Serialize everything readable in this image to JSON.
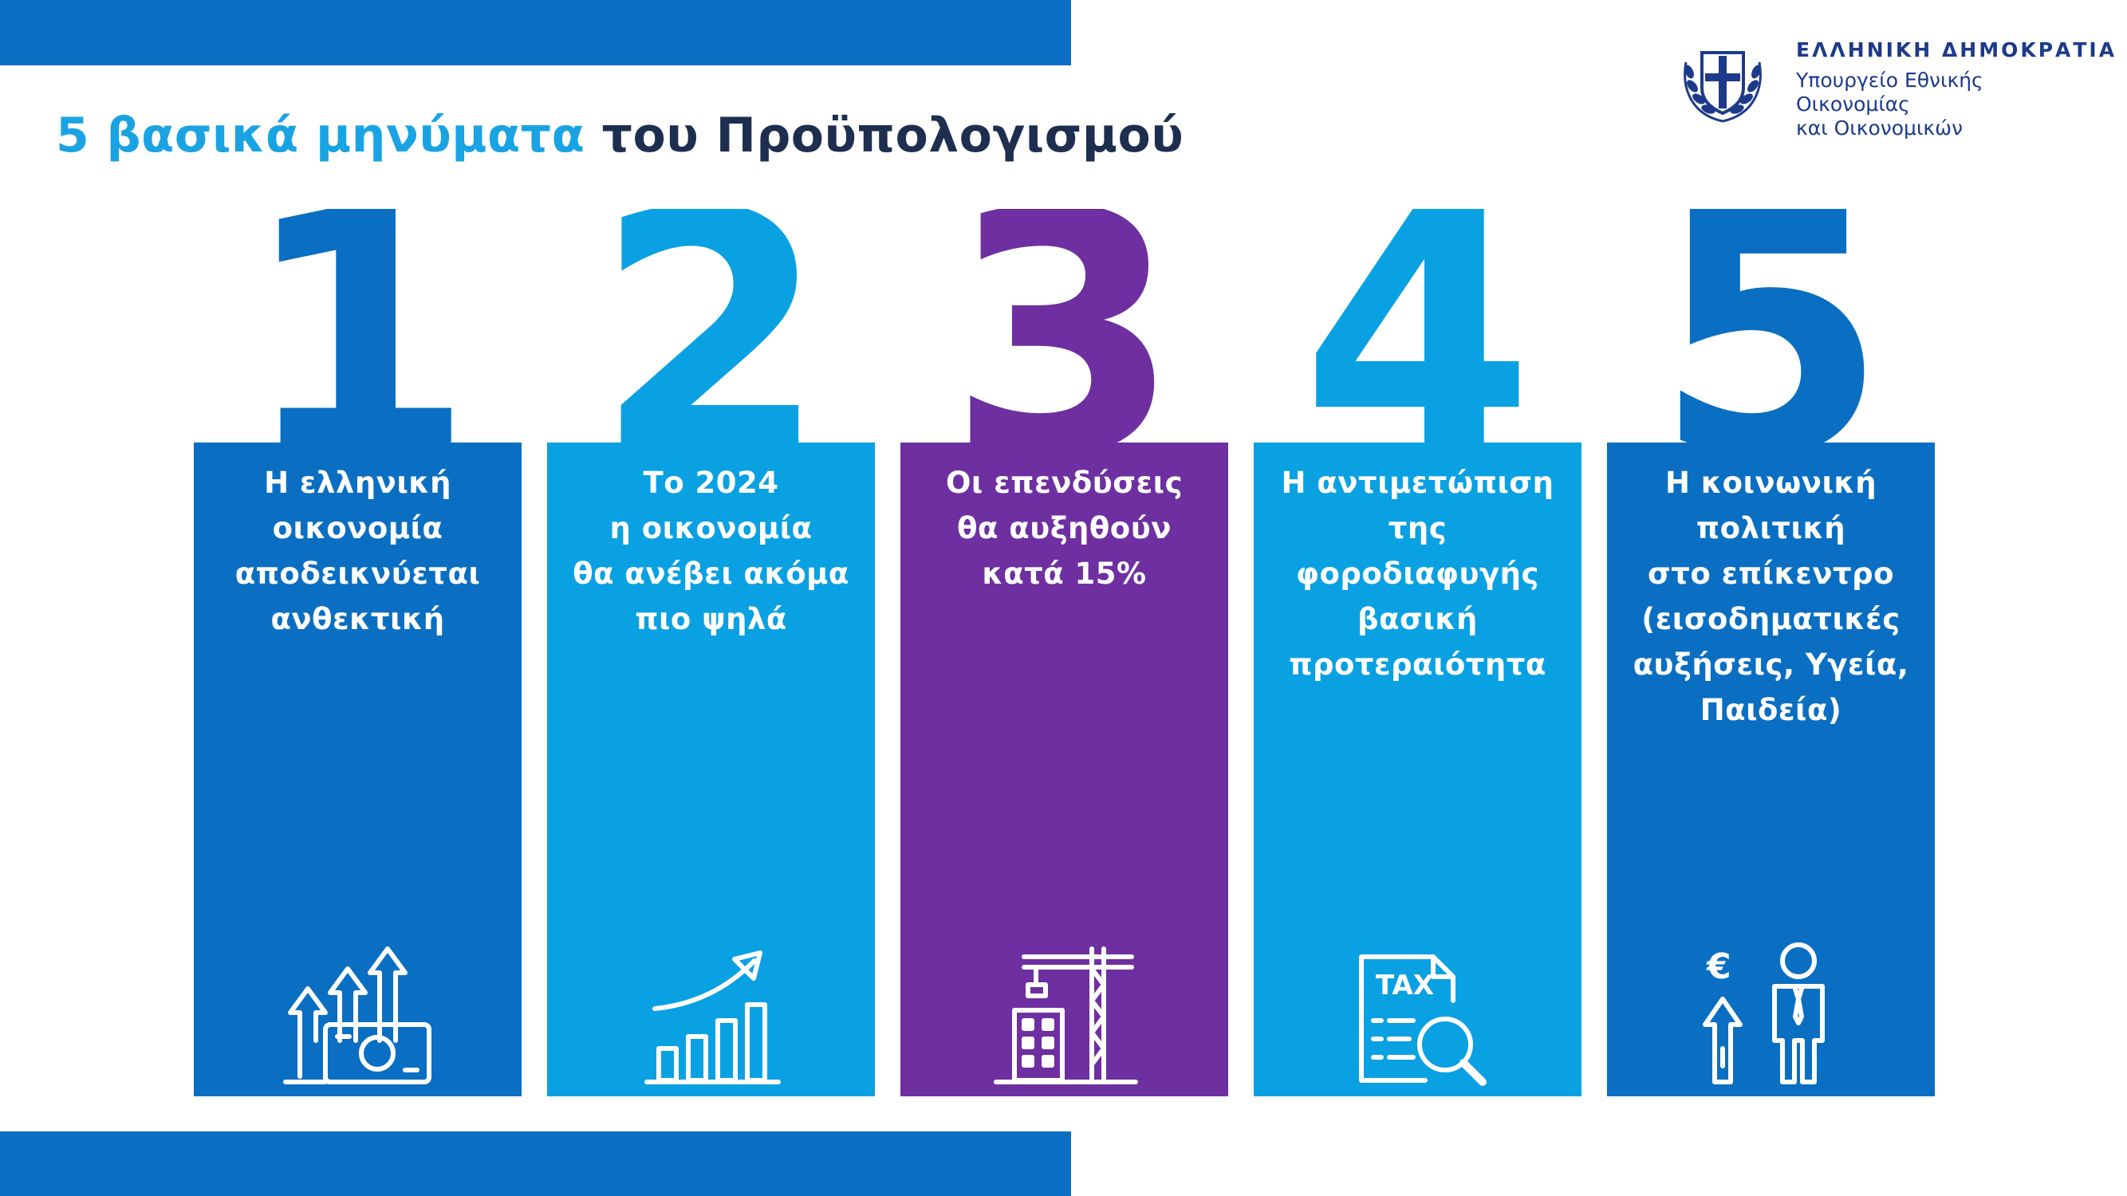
{
  "header": {
    "title_highlight": "5 βασικά μηνύματα",
    "title_rest": " του Προϋπολογισμού"
  },
  "logo": {
    "title": "ΕΛΛΗΝΙΚΗ ΔΗΜΟΚΡΑΤΙΑ",
    "subtitle": "Υπουργείο Εθνικής Οικονομίας\nκαι Οικονομικών"
  },
  "colors": {
    "dark_blue": "#0a6fc2",
    "light_blue": "#0aa1e2",
    "purple": "#6e2fa0",
    "title_dark": "#1d2e4f",
    "title_accent": "#1aa3e3"
  },
  "messages": [
    {
      "number": "1",
      "color": "#0a6fc2",
      "text": "Η ελληνική\nοικονομία\nαποδεικνύεται\nανθεκτική",
      "icon": "growth-arrows-money-icon"
    },
    {
      "number": "2",
      "color": "#0aa1e2",
      "text": "Το 2024\nη οικονομία\nθα ανέβει ακόμα\nπιο ψηλά",
      "icon": "rising-bar-chart-icon"
    },
    {
      "number": "3",
      "color": "#6e2fa0",
      "text": "Οι επενδύσεις\nθα αυξηθούν\nκατά 15%",
      "icon": "construction-crane-icon"
    },
    {
      "number": "4",
      "color": "#0aa1e2",
      "text": "Η αντιμετώπιση\nτης\nφοροδιαφυγής\nβασική\nπροτεραιότητα",
      "icon": "tax-document-magnifier-icon"
    },
    {
      "number": "5",
      "color": "#0a6fc2",
      "text": "Η κοινωνική\nπολιτική\nστο επίκεντρο\n(εισοδηματικές\nαυξήσεις, Υγεία,\nΠαιδεία)",
      "icon": "person-euro-up-icon"
    }
  ]
}
